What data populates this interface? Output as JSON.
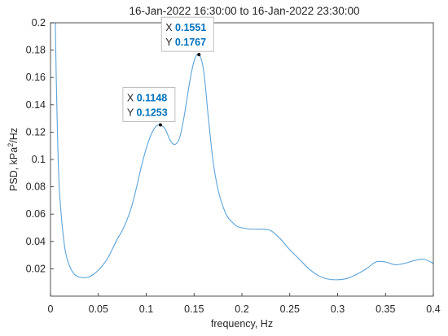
{
  "chart_data": {
    "type": "line",
    "title": "16-Jan-2022 16:30:00  to  16-Jan-2022 23:30:00",
    "xlabel": "frequency, Hz",
    "ylabel_main": "PSD, kPa",
    "ylabel_sup": "2",
    "ylabel_tail": "/Hz",
    "xlim": [
      0,
      0.4
    ],
    "ylim": [
      0,
      0.2
    ],
    "grid": false,
    "line_color": "#5BA4DA",
    "x_ticks": [
      "0",
      "0.05",
      "0.1",
      "0.15",
      "0.2",
      "0.25",
      "0.3",
      "0.35",
      "0.4"
    ],
    "y_ticks": [
      "0.02",
      "0.04",
      "0.06",
      "0.08",
      "0.1",
      "0.12",
      "0.14",
      "0.16",
      "0.18",
      "0.2"
    ],
    "series": [
      {
        "x": [
          0.005,
          0.006,
          0.008,
          0.01,
          0.015,
          0.02,
          0.025,
          0.03,
          0.035,
          0.04,
          0.045,
          0.05,
          0.055,
          0.06,
          0.065,
          0.07,
          0.075,
          0.08,
          0.085,
          0.09,
          0.095,
          0.1,
          0.105,
          0.11,
          0.1148,
          0.12,
          0.125,
          0.13,
          0.135,
          0.14,
          0.145,
          0.15,
          0.1551,
          0.16,
          0.165,
          0.17,
          0.175,
          0.18,
          0.185,
          0.19,
          0.195,
          0.2,
          0.21,
          0.22,
          0.23,
          0.24,
          0.25,
          0.26,
          0.27,
          0.28,
          0.29,
          0.3,
          0.31,
          0.32,
          0.33,
          0.34,
          0.35,
          0.36,
          0.37,
          0.38,
          0.39,
          0.4
        ],
        "y": [
          0.2,
          0.16,
          0.1,
          0.07,
          0.035,
          0.022,
          0.016,
          0.014,
          0.0135,
          0.014,
          0.016,
          0.019,
          0.023,
          0.028,
          0.035,
          0.042,
          0.048,
          0.056,
          0.066,
          0.08,
          0.095,
          0.108,
          0.118,
          0.124,
          0.1253,
          0.122,
          0.114,
          0.111,
          0.116,
          0.133,
          0.155,
          0.172,
          0.1767,
          0.165,
          0.13,
          0.098,
          0.078,
          0.066,
          0.058,
          0.054,
          0.051,
          0.05,
          0.049,
          0.049,
          0.048,
          0.042,
          0.034,
          0.027,
          0.02,
          0.015,
          0.0125,
          0.012,
          0.013,
          0.016,
          0.02,
          0.025,
          0.025,
          0.023,
          0.024,
          0.026,
          0.027,
          0.024
        ]
      }
    ],
    "datatips": [
      {
        "x_label": "X",
        "x_value": "0.1148",
        "y_label": "Y",
        "y_value": "0.1253",
        "x": 0.1148,
        "y": 0.1253
      },
      {
        "x_label": "X",
        "x_value": "0.1551",
        "y_label": "Y",
        "y_value": "0.1767",
        "x": 0.1551,
        "y": 0.1767
      }
    ]
  }
}
